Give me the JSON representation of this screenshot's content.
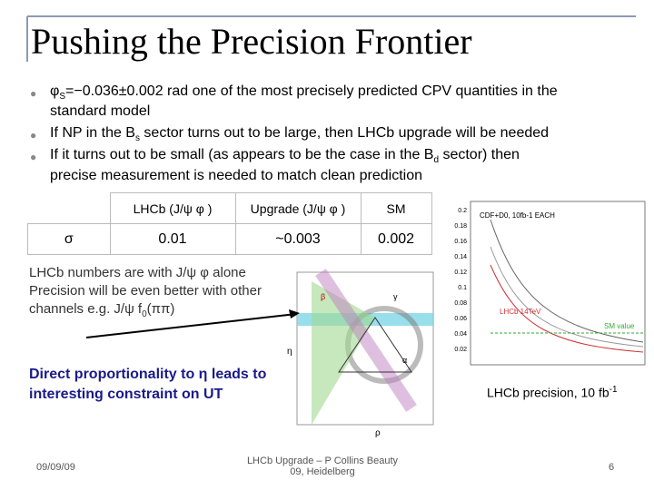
{
  "header": {
    "title": "Pushing the Precision Frontier"
  },
  "bullets": [
    [
      "φ",
      "S",
      "=−0.036±0.002 rad one of the most precisely predicted CPV quantities in the",
      "standard model"
    ],
    [
      "If NP in the B",
      "s",
      " sector turns out to be large, then LHCb upgrade will be needed"
    ],
    [
      "If it turns out to be small (as appears to be the case in the B",
      "d",
      " sector) then",
      "precise measurement is needed to match clean prediction"
    ]
  ],
  "table": {
    "header": [
      "LHCb (J/ψ φ )",
      "Upgrade (J/ψ φ )",
      "SM"
    ],
    "rows": [
      [
        "σ",
        "0.01",
        "~0.003",
        "0.002"
      ]
    ]
  },
  "notes": {
    "lines": [
      "LHCb numbers are with J/ψ φ alone",
      "Precision will be even better with other",
      "channels e.g. J/ψ f",
      "0",
      "(ππ)"
    ]
  },
  "constraint": {
    "lines": [
      "Direct proportionality to η leads to",
      "interesting constraint on UT"
    ]
  },
  "figure_left": {
    "labels": [
      "β",
      "γ",
      "α",
      "ρ",
      "η"
    ]
  },
  "figure_right": {
    "labels": [
      "CDF+D0, 10fb-1 EACH",
      "LHCb 14TeV",
      "SM value"
    ],
    "yticks": [
      "0.2",
      "0.18",
      "0.16",
      "0.14",
      "0.12",
      "0.1",
      "0.08",
      "0.06",
      "0.04",
      "0.02"
    ]
  },
  "caption": {
    "text": "LHCb precision, 10 fb",
    "sup": "-1"
  },
  "footer": {
    "date": "09/09/09",
    "center": [
      "LHCb Upgrade – P Collins Beauty",
      "09, Heidelberg"
    ],
    "page": "6"
  }
}
